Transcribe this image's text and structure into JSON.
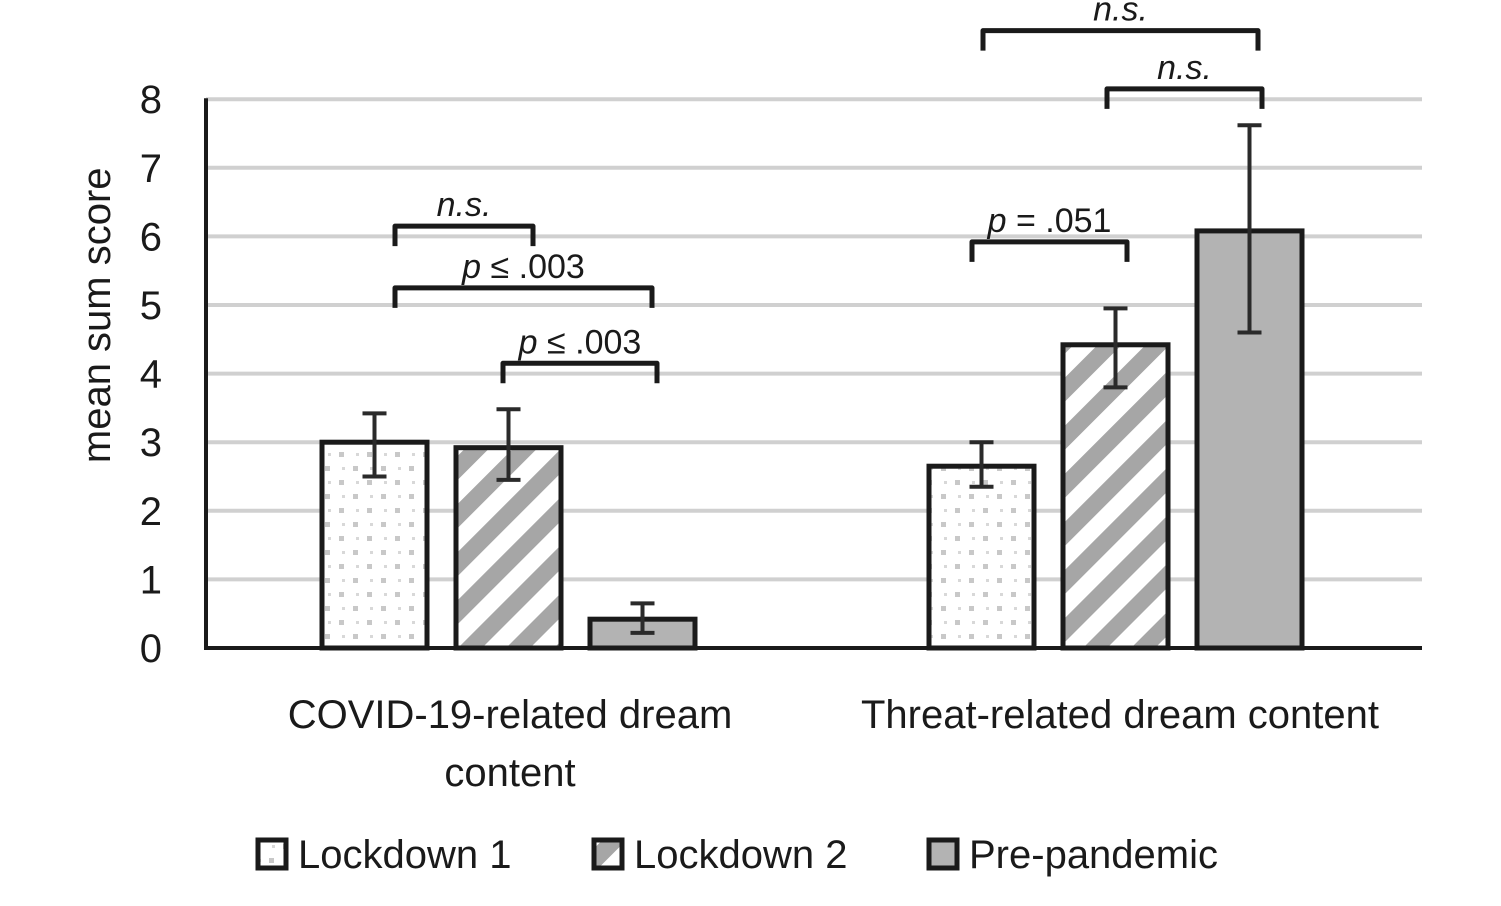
{
  "chart_data": {
    "type": "bar",
    "ylabel": "mean sum score",
    "ylim": [
      0,
      8
    ],
    "yticks": [
      0,
      1,
      2,
      3,
      4,
      5,
      6,
      7,
      8
    ],
    "grid": true,
    "legend_position": "bottom",
    "categories": [
      "COVID-19-related dream content",
      "Threat-related dream content"
    ],
    "series": [
      {
        "name": "Lockdown 1",
        "values": [
          3.0,
          2.65
        ],
        "error": [
          [
            2.5,
            3.42
          ],
          [
            2.35,
            3.0
          ]
        ],
        "pattern": "dots",
        "color": "#ffffff"
      },
      {
        "name": "Lockdown 2",
        "values": [
          2.92,
          4.42
        ],
        "error": [
          [
            2.45,
            3.48
          ],
          [
            3.8,
            4.95
          ]
        ],
        "pattern": "stripes",
        "color": "#a6a6a6"
      },
      {
        "name": "Pre-pandemic",
        "values": [
          0.42,
          6.08
        ],
        "error": [
          [
            0.22,
            0.65
          ],
          [
            4.6,
            7.62
          ]
        ],
        "pattern": "solid",
        "color": "#b3b3b3"
      }
    ],
    "annotations": [
      {
        "group": 0,
        "from": 0,
        "to": 1,
        "italic": "n.s.",
        "text": "",
        "y": 6.15
      },
      {
        "group": 0,
        "from": 0,
        "to": 2,
        "italic": "p",
        "text": " ≤  .003",
        "y": 5.25
      },
      {
        "group": 0,
        "from": 1,
        "to": 2,
        "italic": "p",
        "text": " ≤  .003",
        "y": 4.15
      },
      {
        "group": 1,
        "from": 0,
        "to": 1,
        "italic": "p",
        "text": " = .051",
        "y": 5.92
      },
      {
        "group": 1,
        "from": 1,
        "to": 2,
        "italic": "n.s.",
        "text": "",
        "y": 8.15
      },
      {
        "group": 1,
        "from": 0,
        "to": 2,
        "italic": "n.s.",
        "text": "",
        "y": 9.0
      }
    ]
  }
}
